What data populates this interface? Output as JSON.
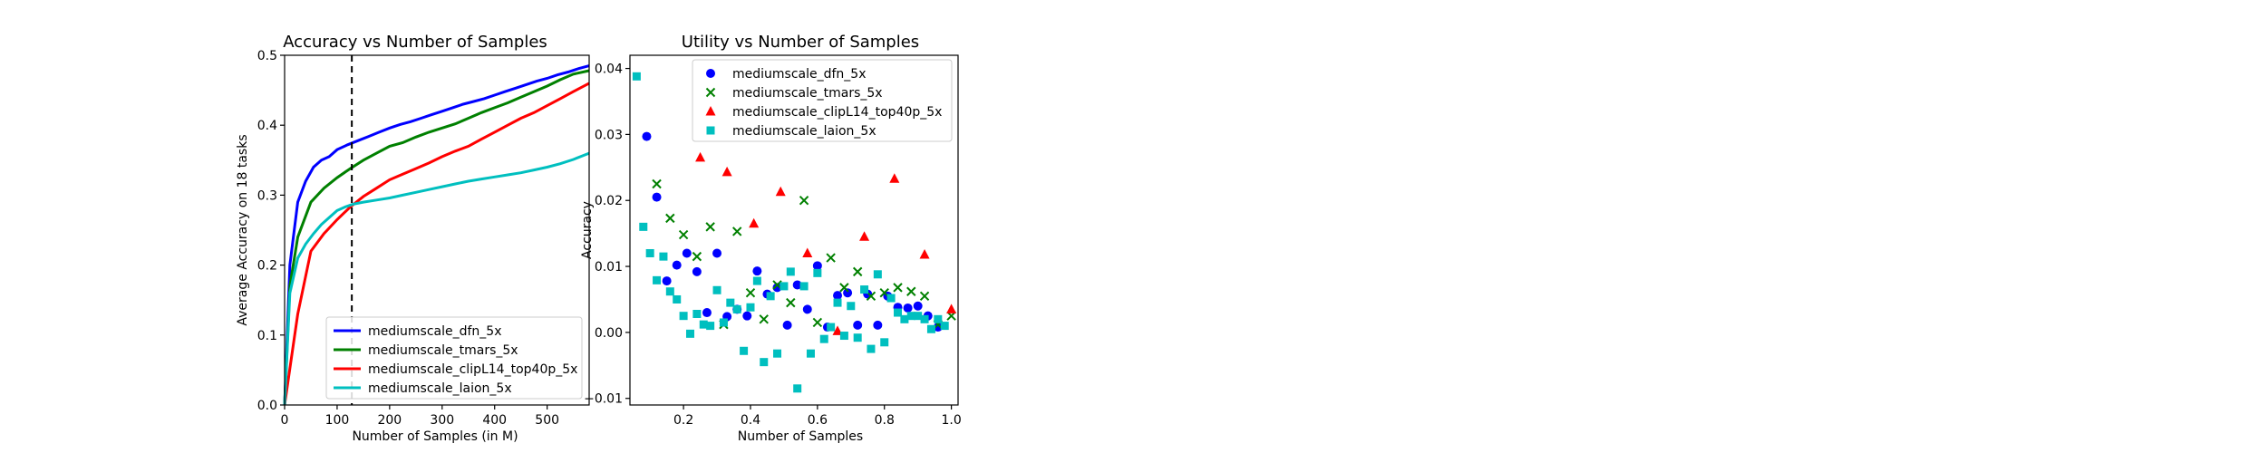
{
  "chart_data": [
    {
      "type": "line",
      "title": "Accuracy vs Number of Samples",
      "xlabel": "Number of Samples (in M)",
      "ylabel": "Average Accuracy on 18 tasks",
      "xlim": [
        0,
        580
      ],
      "ylim": [
        0,
        0.5
      ],
      "xticks": [
        "0",
        "100",
        "200",
        "300",
        "400",
        "500"
      ],
      "yticks": [
        "0.0",
        "0.1",
        "0.2",
        "0.3",
        "0.4",
        "0.5"
      ],
      "vline_x": 128,
      "grid": false,
      "legend_position": "lower-right",
      "series": [
        {
          "name": "mediumscale_dfn_5x",
          "color": "#0000ff",
          "x": [
            0,
            10,
            25,
            40,
            55,
            70,
            85,
            100,
            120,
            140,
            160,
            180,
            200,
            220,
            240,
            260,
            280,
            300,
            320,
            340,
            360,
            380,
            400,
            420,
            440,
            460,
            480,
            500,
            520,
            540,
            560,
            580
          ],
          "y": [
            0.0,
            0.2,
            0.29,
            0.32,
            0.34,
            0.35,
            0.355,
            0.365,
            0.372,
            0.378,
            0.384,
            0.39,
            0.396,
            0.401,
            0.405,
            0.41,
            0.415,
            0.42,
            0.425,
            0.43,
            0.434,
            0.438,
            0.443,
            0.448,
            0.453,
            0.458,
            0.463,
            0.467,
            0.472,
            0.476,
            0.481,
            0.485
          ]
        },
        {
          "name": "mediumscale_tmars_5x",
          "color": "#008000",
          "x": [
            0,
            10,
            25,
            50,
            75,
            100,
            125,
            150,
            175,
            200,
            225,
            250,
            275,
            300,
            325,
            350,
            375,
            400,
            425,
            450,
            475,
            500,
            525,
            550,
            580
          ],
          "y": [
            0.0,
            0.17,
            0.24,
            0.29,
            0.31,
            0.325,
            0.338,
            0.35,
            0.36,
            0.37,
            0.375,
            0.383,
            0.39,
            0.396,
            0.402,
            0.41,
            0.418,
            0.425,
            0.432,
            0.44,
            0.448,
            0.456,
            0.465,
            0.473,
            0.478
          ]
        },
        {
          "name": "mediumscale_clipL14_top40p_5x",
          "color": "#ff0000",
          "x": [
            0,
            25,
            50,
            75,
            100,
            125,
            150,
            175,
            200,
            225,
            250,
            275,
            300,
            325,
            350,
            375,
            400,
            425,
            450,
            475,
            500,
            525,
            550,
            580
          ],
          "y": [
            0.0,
            0.13,
            0.22,
            0.245,
            0.265,
            0.283,
            0.298,
            0.31,
            0.322,
            0.33,
            0.338,
            0.346,
            0.355,
            0.363,
            0.37,
            0.38,
            0.39,
            0.4,
            0.41,
            0.418,
            0.428,
            0.438,
            0.448,
            0.46
          ]
        },
        {
          "name": "mediumscale_laion_5x",
          "color": "#00bfbf",
          "x": [
            0,
            10,
            25,
            40,
            55,
            70,
            85,
            100,
            115,
            130,
            150,
            175,
            200,
            225,
            250,
            275,
            300,
            325,
            350,
            375,
            400,
            425,
            450,
            475,
            500,
            525,
            550,
            580
          ],
          "y": [
            0.0,
            0.16,
            0.21,
            0.23,
            0.245,
            0.258,
            0.268,
            0.278,
            0.283,
            0.287,
            0.29,
            0.293,
            0.296,
            0.3,
            0.304,
            0.308,
            0.312,
            0.316,
            0.32,
            0.323,
            0.326,
            0.329,
            0.332,
            0.336,
            0.34,
            0.345,
            0.351,
            0.36
          ]
        }
      ]
    },
    {
      "type": "scatter",
      "title": "Utility vs Number of Samples",
      "xlabel": "Number of Samples",
      "ylabel": "Accuracy",
      "xlim": [
        0.04,
        1.02
      ],
      "ylim": [
        -0.011,
        0.042
      ],
      "xticks": [
        "0.2",
        "0.4",
        "0.6",
        "0.8",
        "1.0"
      ],
      "yticks": [
        "−0.01",
        "0.00",
        "0.01",
        "0.02",
        "0.03",
        "0.04"
      ],
      "xtick_values": [
        0.2,
        0.4,
        0.6,
        0.8,
        1.0
      ],
      "ytick_values": [
        -0.01,
        0.0,
        0.01,
        0.02,
        0.03,
        0.04
      ],
      "grid": false,
      "legend_position": "top-right",
      "series": [
        {
          "name": "mediumscale_dfn_5x",
          "color": "#0000ff",
          "marker": "circle",
          "points": [
            [
              0.09,
              0.0297
            ],
            [
              0.12,
              0.0205
            ],
            [
              0.15,
              0.0078
            ],
            [
              0.18,
              0.0102
            ],
            [
              0.21,
              0.012
            ],
            [
              0.24,
              0.0092
            ],
            [
              0.27,
              0.003
            ],
            [
              0.3,
              0.012
            ],
            [
              0.33,
              0.0024
            ],
            [
              0.36,
              0.0035
            ],
            [
              0.39,
              0.0025
            ],
            [
              0.42,
              0.0093
            ],
            [
              0.45,
              0.0058
            ],
            [
              0.48,
              0.0068
            ],
            [
              0.51,
              0.0011
            ],
            [
              0.54,
              0.0072
            ],
            [
              0.57,
              0.0035
            ],
            [
              0.6,
              0.0101
            ],
            [
              0.63,
              0.0008
            ],
            [
              0.66,
              0.0056
            ],
            [
              0.69,
              0.006
            ],
            [
              0.72,
              0.0011
            ],
            [
              0.75,
              0.0058
            ],
            [
              0.78,
              0.0011
            ],
            [
              0.81,
              0.0055
            ],
            [
              0.84,
              0.0038
            ],
            [
              0.87,
              0.0037
            ],
            [
              0.9,
              0.004
            ],
            [
              0.93,
              0.0025
            ],
            [
              0.96,
              0.0008
            ]
          ]
        },
        {
          "name": "mediumscale_tmars_5x",
          "color": "#008000",
          "marker": "x",
          "points": [
            [
              0.12,
              0.0225
            ],
            [
              0.16,
              0.0173
            ],
            [
              0.2,
              0.0148
            ],
            [
              0.24,
              0.0115
            ],
            [
              0.28,
              0.016
            ],
            [
              0.32,
              0.0012
            ],
            [
              0.36,
              0.0153
            ],
            [
              0.4,
              0.006
            ],
            [
              0.44,
              0.002
            ],
            [
              0.48,
              0.0072
            ],
            [
              0.52,
              0.0045
            ],
            [
              0.56,
              0.02
            ],
            [
              0.6,
              0.0015
            ],
            [
              0.64,
              0.0113
            ],
            [
              0.68,
              0.0068
            ],
            [
              0.72,
              0.0092
            ],
            [
              0.76,
              0.0055
            ],
            [
              0.8,
              0.006
            ],
            [
              0.84,
              0.0068
            ],
            [
              0.88,
              0.0062
            ],
            [
              0.92,
              0.0055
            ],
            [
              0.96,
              0.0012
            ],
            [
              1.0,
              0.0025
            ]
          ]
        },
        {
          "name": "mediumscale_clipL14_top40p_5x",
          "color": "#ff0000",
          "marker": "triangle",
          "points": [
            [
              0.25,
              0.0265
            ],
            [
              0.33,
              0.0243
            ],
            [
              0.41,
              0.0165
            ],
            [
              0.49,
              0.0213
            ],
            [
              0.57,
              0.012
            ],
            [
              0.66,
              0.0002
            ],
            [
              0.74,
              0.0145
            ],
            [
              0.83,
              0.0233
            ],
            [
              0.92,
              0.0118
            ],
            [
              1.0,
              0.0035
            ]
          ]
        },
        {
          "name": "mediumscale_laion_5x",
          "color": "#00bfbf",
          "marker": "square",
          "points": [
            [
              0.06,
              0.0388
            ],
            [
              0.08,
              0.016
            ],
            [
              0.1,
              0.012
            ],
            [
              0.12,
              0.0079
            ],
            [
              0.14,
              0.0115
            ],
            [
              0.16,
              0.0062
            ],
            [
              0.18,
              0.005
            ],
            [
              0.2,
              0.0025
            ],
            [
              0.22,
              -0.0002
            ],
            [
              0.24,
              0.0028
            ],
            [
              0.26,
              0.0012
            ],
            [
              0.28,
              0.001
            ],
            [
              0.3,
              0.0064
            ],
            [
              0.32,
              0.0015
            ],
            [
              0.34,
              0.0045
            ],
            [
              0.36,
              0.0035
            ],
            [
              0.38,
              -0.0028
            ],
            [
              0.4,
              0.0038
            ],
            [
              0.42,
              0.0078
            ],
            [
              0.44,
              -0.0045
            ],
            [
              0.46,
              0.0055
            ],
            [
              0.48,
              -0.0032
            ],
            [
              0.5,
              0.007
            ],
            [
              0.52,
              0.0092
            ],
            [
              0.54,
              -0.0085
            ],
            [
              0.56,
              0.007
            ],
            [
              0.58,
              -0.0032
            ],
            [
              0.6,
              0.009
            ],
            [
              0.62,
              -0.001
            ],
            [
              0.64,
              0.0008
            ],
            [
              0.66,
              0.0045
            ],
            [
              0.68,
              -0.0005
            ],
            [
              0.7,
              0.004
            ],
            [
              0.72,
              -0.0008
            ],
            [
              0.74,
              0.0065
            ],
            [
              0.76,
              -0.0025
            ],
            [
              0.78,
              0.0088
            ],
            [
              0.8,
              -0.0015
            ],
            [
              0.82,
              0.0052
            ],
            [
              0.84,
              0.003
            ],
            [
              0.86,
              0.002
            ],
            [
              0.88,
              0.0025
            ],
            [
              0.9,
              0.0025
            ],
            [
              0.92,
              0.002
            ],
            [
              0.94,
              0.0005
            ],
            [
              0.96,
              0.002
            ],
            [
              0.98,
              0.001
            ]
          ]
        }
      ]
    }
  ]
}
